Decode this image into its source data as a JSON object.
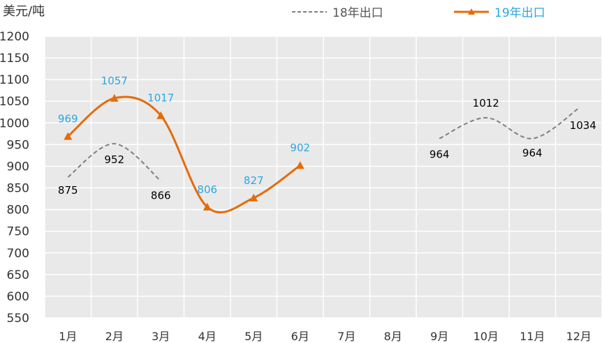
{
  "chart_data": {
    "type": "line",
    "title": "",
    "ylabel": "美元/吨",
    "xlabel": "",
    "ylim": [
      550,
      1200
    ],
    "ytick_step": 50,
    "grid": true,
    "legend_position": "top",
    "categories": [
      "1月",
      "2月",
      "3月",
      "4月",
      "5月",
      "6月",
      "7月",
      "8月",
      "9月",
      "10月",
      "11月",
      "12月"
    ],
    "series": [
      {
        "name": "18年出口",
        "style": "dashed",
        "color": "#7f7f7f",
        "label_color": "#000000",
        "values": [
          875,
          952,
          866,
          null,
          null,
          null,
          null,
          null,
          964,
          1012,
          964,
          1034
        ],
        "labels": [
          "875",
          "952",
          "866",
          "",
          "",
          "",
          "",
          "",
          "964",
          "1012",
          "964",
          "1034"
        ]
      },
      {
        "name": "19年出口",
        "style": "solid",
        "marker": "triangle",
        "color": "#e46c0a",
        "label_color": "#2aa7e0",
        "values": [
          969,
          1057,
          1017,
          806,
          827,
          902,
          null,
          null,
          null,
          null,
          null,
          null
        ],
        "labels": [
          "969",
          "1057",
          "1017",
          "806",
          "827",
          "902",
          "",
          "",
          "",
          "",
          "",
          ""
        ]
      }
    ]
  }
}
